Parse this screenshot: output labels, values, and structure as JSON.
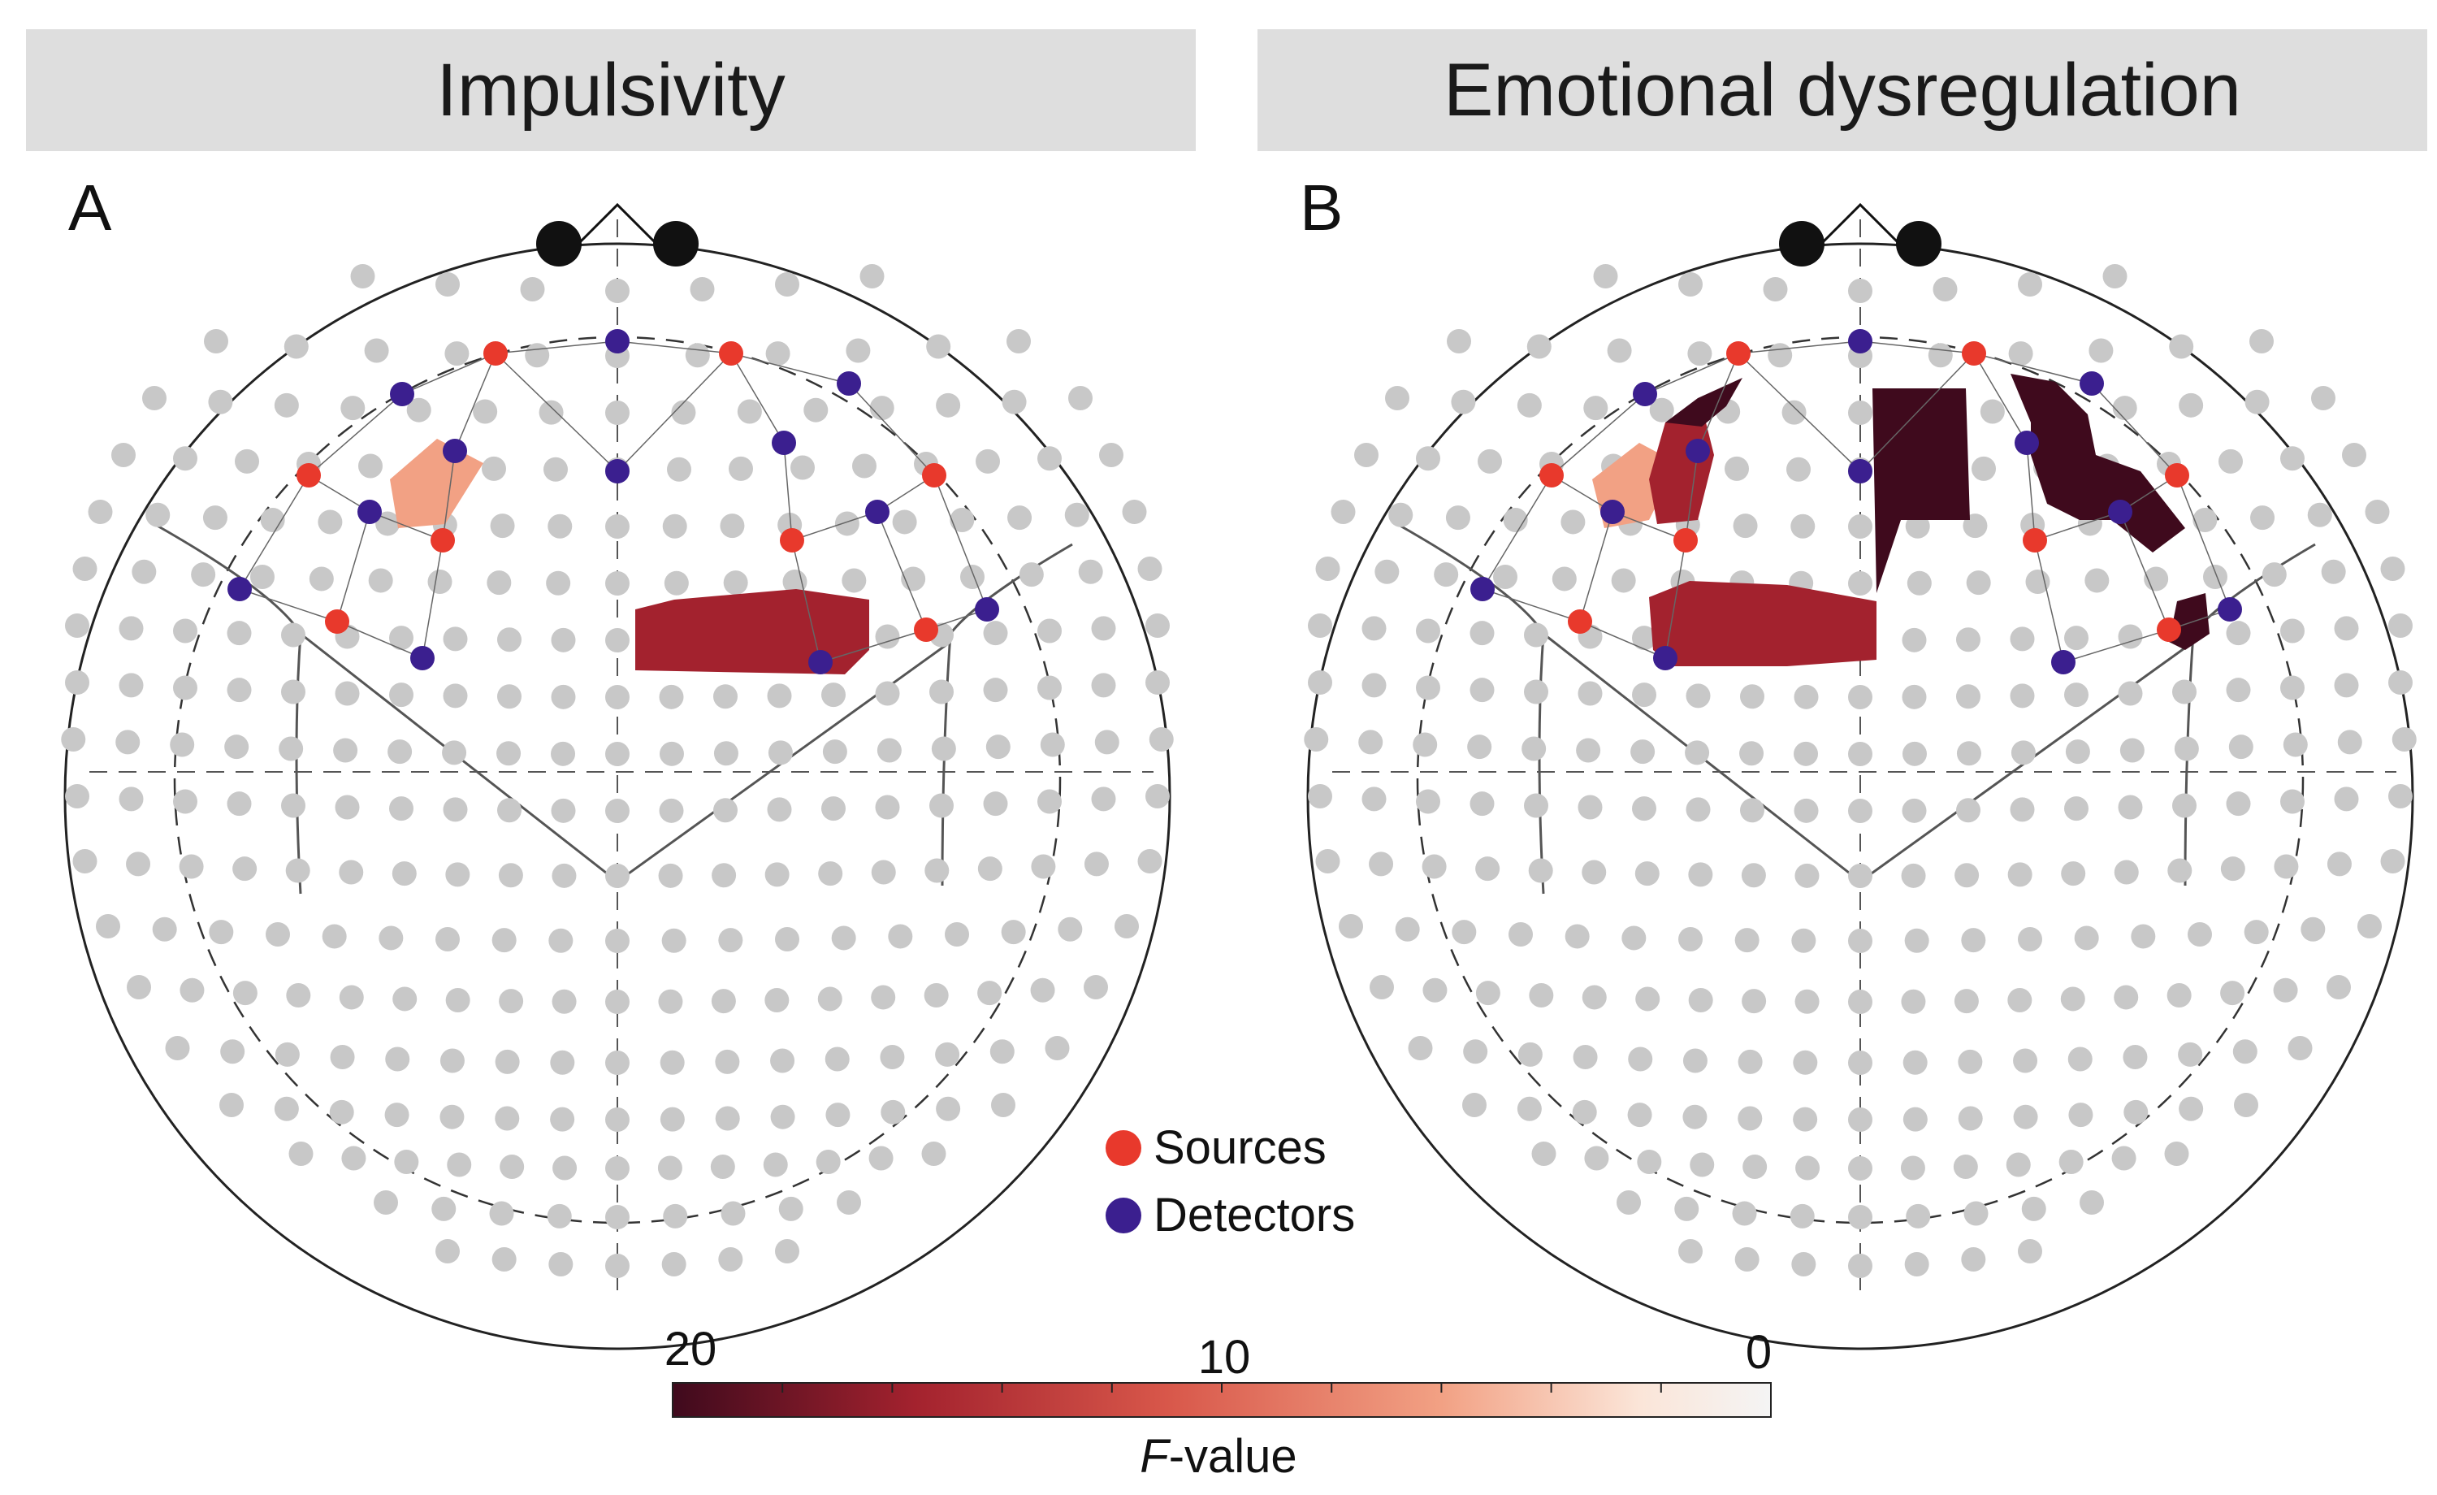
{
  "panels": [
    {
      "id": "a",
      "title": "Impulsivity",
      "label": "A"
    },
    {
      "id": "b",
      "title": "Emotional dysregulation",
      "label": "B"
    }
  ],
  "legend": {
    "sources": "Sources",
    "detectors": "Detectors"
  },
  "colorbar": {
    "ticks": [
      "20",
      "10",
      "0"
    ],
    "range": [
      20,
      0
    ],
    "label_italic": "F",
    "label_rest": "-value"
  },
  "colors": {
    "source": "#e8392c",
    "detector": "#3b1f8f",
    "channel": "#c8c8c8",
    "colormap": [
      "#3f0a1d",
      "#a3222e",
      "#d8574a",
      "#f2a184",
      "#fbe5d8",
      "#f4f4f4"
    ]
  }
}
